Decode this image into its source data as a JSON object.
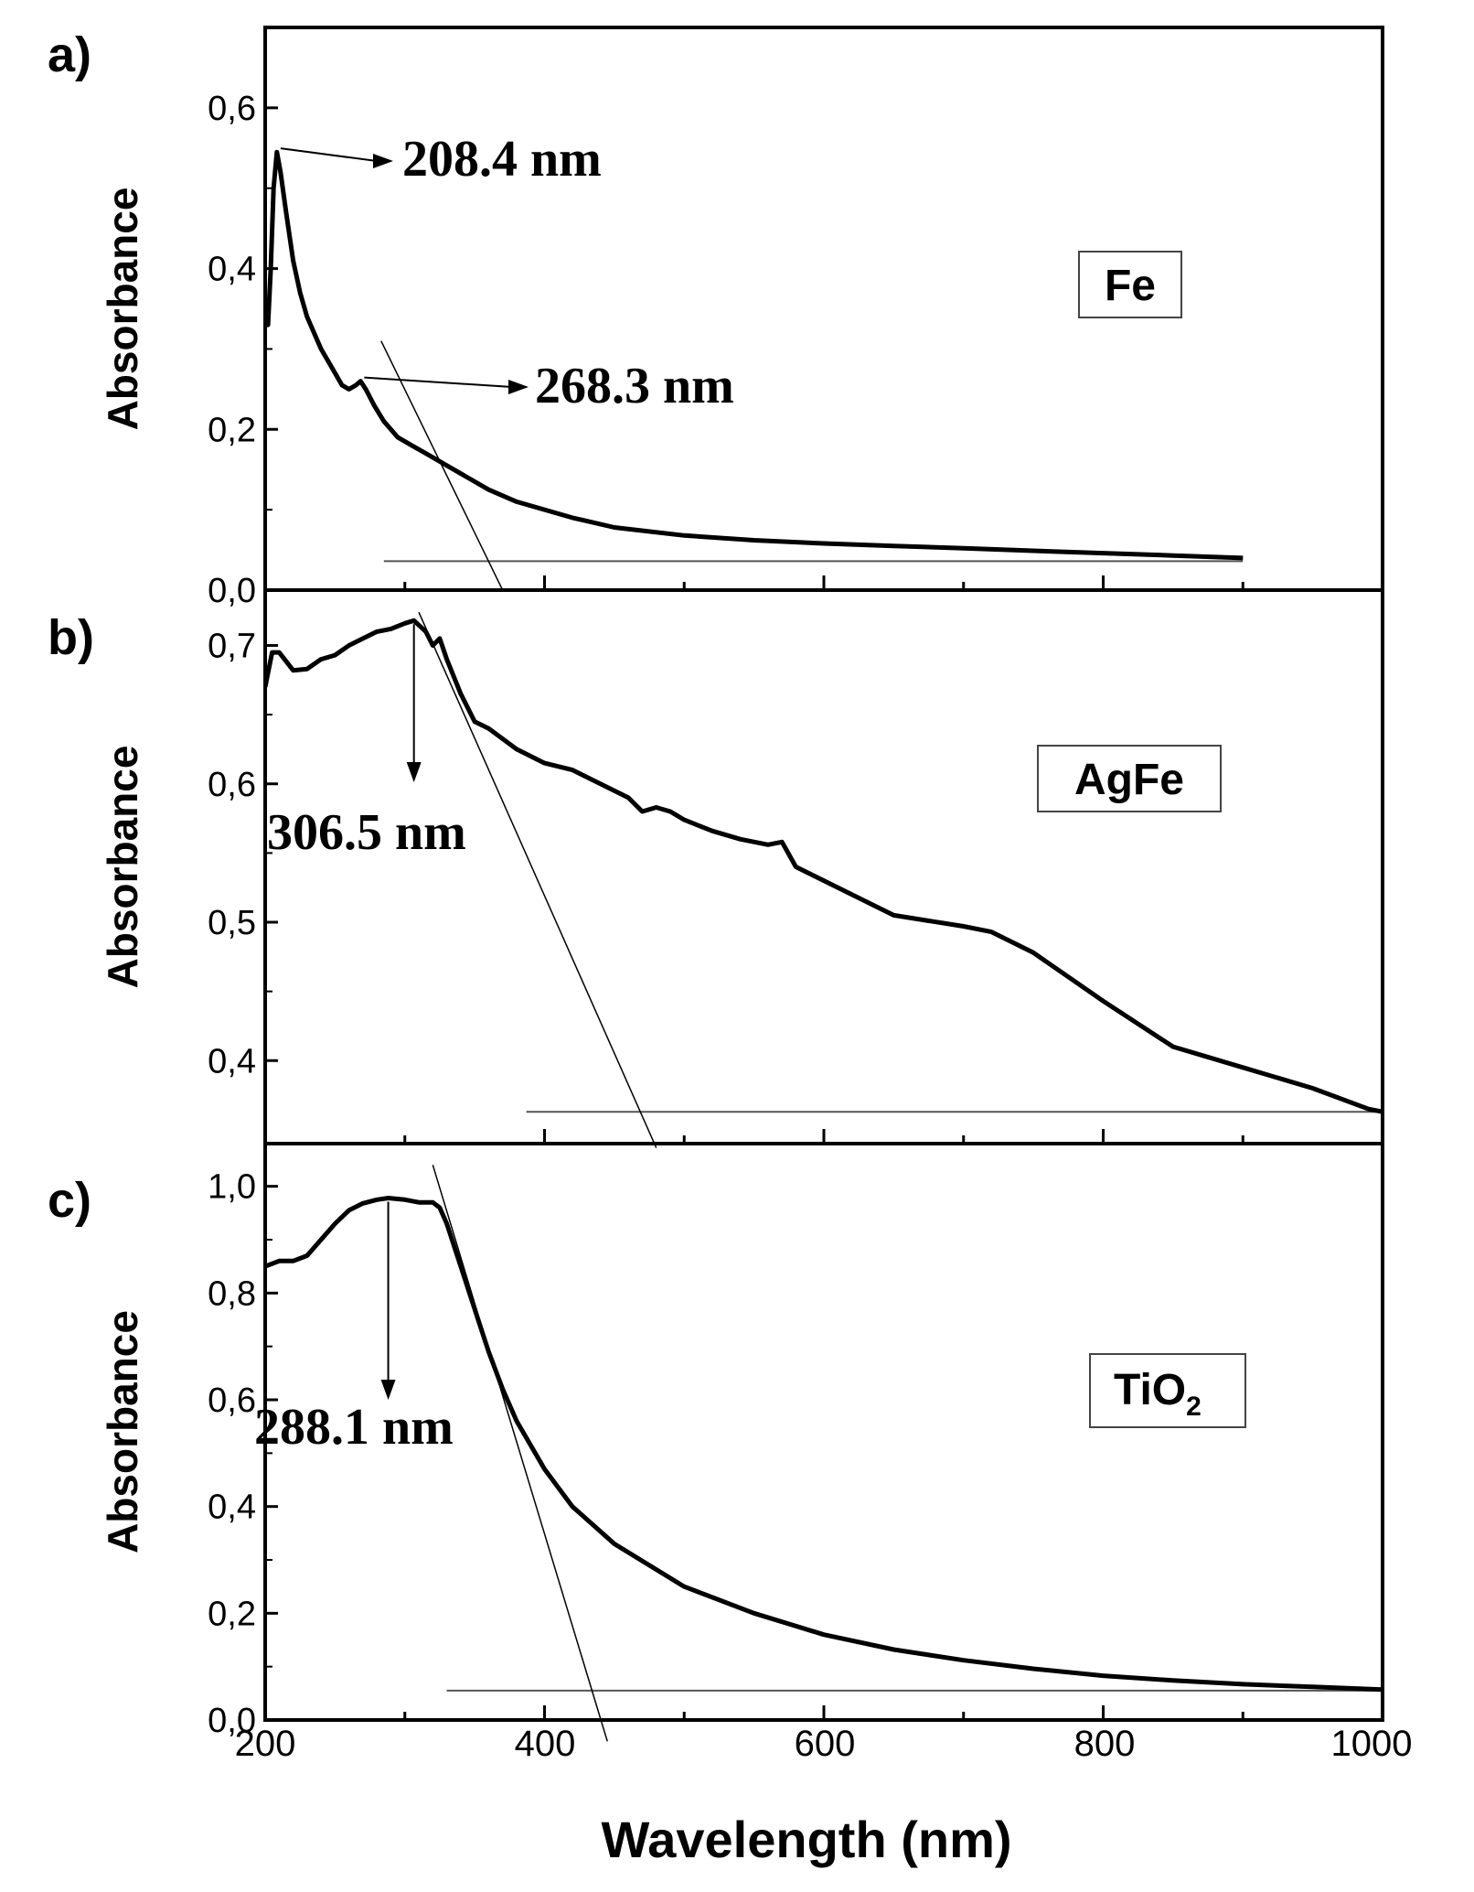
{
  "figure": {
    "xlabel": "Wavelength (nm)",
    "ylabel": "Absorbance",
    "x_ticks": [
      "200",
      "400",
      "600",
      "800",
      "1000"
    ],
    "line_color": "#000000",
    "tangent_color": "#000000",
    "baseline_color": "#555555"
  },
  "chart_data": [
    {
      "type": "line",
      "panel_label": "a)",
      "legend": "Fe",
      "xlabel": "Wavelength (nm)",
      "ylabel": "Absorbance",
      "xlim": [
        200,
        1000
      ],
      "ylim": [
        0,
        0.7
      ],
      "y_ticks": [
        0,
        0.2,
        0.4,
        0.6
      ],
      "y_tick_labels": [
        "0,0",
        "0,2",
        "0,4",
        "0,6"
      ],
      "series": [
        {
          "name": "Fe",
          "x": [
            200,
            202,
            204,
            206,
            208.4,
            211,
            215,
            220,
            225,
            230,
            240,
            250,
            255,
            260,
            265,
            268.3,
            272,
            278,
            285,
            295,
            305,
            315,
            330,
            345,
            360,
            380,
            400,
            420,
            450,
            500,
            550,
            600,
            650,
            700,
            750,
            800,
            850,
            900
          ],
          "y": [
            0.33,
            0.33,
            0.4,
            0.5,
            0.545,
            0.52,
            0.47,
            0.41,
            0.37,
            0.34,
            0.3,
            0.27,
            0.255,
            0.25,
            0.255,
            0.26,
            0.25,
            0.23,
            0.21,
            0.19,
            0.18,
            0.17,
            0.155,
            0.14,
            0.125,
            0.11,
            0.1,
            0.09,
            0.078,
            0.068,
            0.062,
            0.058,
            0.055,
            0.052,
            0.049,
            0.046,
            0.043,
            0.04
          ]
        }
      ],
      "peaks": [
        {
          "x": 208.4,
          "y": 0.545,
          "label": "208.4 nm",
          "arrow": "right"
        },
        {
          "x": 268.3,
          "y": 0.26,
          "label": "268.3 nm",
          "arrow": "right"
        }
      ],
      "tangent": {
        "x": [
          283,
          370
        ],
        "y": [
          0.31,
          0.0
        ]
      },
      "baseline": {
        "x": [
          285,
          900
        ],
        "y": 0.036
      }
    },
    {
      "type": "line",
      "panel_label": "b)",
      "legend": "AgFe",
      "xlabel": "Wavelength (nm)",
      "ylabel": "Absorbance",
      "xlim": [
        200,
        1000
      ],
      "ylim": [
        0.34,
        0.74
      ],
      "y_ticks": [
        0.4,
        0.5,
        0.6,
        0.7
      ],
      "y_tick_labels": [
        "0,4",
        "0,5",
        "0,6",
        "0,7"
      ],
      "series": [
        {
          "name": "AgFe",
          "x": [
            200,
            205,
            210,
            220,
            230,
            240,
            250,
            260,
            270,
            280,
            290,
            300,
            306.5,
            315,
            320,
            325,
            330,
            340,
            350,
            360,
            380,
            400,
            420,
            440,
            460,
            470,
            480,
            490,
            500,
            520,
            540,
            560,
            570,
            580,
            600,
            650,
            700,
            720,
            750,
            800,
            850,
            900,
            950,
            990,
            1000
          ],
          "y": [
            0.67,
            0.695,
            0.695,
            0.682,
            0.683,
            0.69,
            0.693,
            0.7,
            0.705,
            0.71,
            0.712,
            0.716,
            0.718,
            0.71,
            0.7,
            0.705,
            0.69,
            0.665,
            0.645,
            0.64,
            0.625,
            0.615,
            0.61,
            0.6,
            0.59,
            0.58,
            0.583,
            0.58,
            0.574,
            0.566,
            0.56,
            0.556,
            0.558,
            0.54,
            0.53,
            0.505,
            0.497,
            0.493,
            0.478,
            0.443,
            0.41,
            0.395,
            0.38,
            0.365,
            0.363
          ]
        }
      ],
      "peaks": [
        {
          "x": 306.5,
          "y": 0.718,
          "label": "306.5 nm",
          "arrow": "down"
        }
      ],
      "tangent": {
        "x": [
          310,
          480
        ],
        "y": [
          0.724,
          0.337
        ]
      },
      "baseline": {
        "x": [
          387,
          1000
        ],
        "y": 0.363
      }
    },
    {
      "type": "line",
      "panel_label": "c)",
      "legend_main": "TiO",
      "legend_sub": "2",
      "xlabel": "Wavelength (nm)",
      "ylabel": "Absorbance",
      "xlim": [
        200,
        1000
      ],
      "ylim": [
        0,
        1.08
      ],
      "y_ticks": [
        0,
        0.2,
        0.4,
        0.6,
        0.8,
        1.0
      ],
      "y_tick_labels": [
        "0,0",
        "0,2",
        "0,4",
        "0,6",
        "0,8",
        "1,0"
      ],
      "series": [
        {
          "name": "TiO2",
          "x": [
            200,
            210,
            220,
            230,
            240,
            250,
            260,
            270,
            280,
            288.1,
            300,
            310,
            320,
            325,
            330,
            340,
            350,
            360,
            370,
            380,
            400,
            420,
            450,
            500,
            550,
            600,
            650,
            700,
            750,
            800,
            850,
            900,
            950,
            1000
          ],
          "y": [
            0.85,
            0.86,
            0.86,
            0.87,
            0.9,
            0.93,
            0.955,
            0.968,
            0.975,
            0.978,
            0.975,
            0.97,
            0.97,
            0.96,
            0.93,
            0.85,
            0.77,
            0.69,
            0.62,
            0.56,
            0.47,
            0.4,
            0.33,
            0.25,
            0.2,
            0.16,
            0.132,
            0.112,
            0.096,
            0.083,
            0.074,
            0.067,
            0.062,
            0.057
          ]
        }
      ],
      "peaks": [
        {
          "x": 288.1,
          "y": 0.978,
          "label": "288.1 nm",
          "arrow": "down"
        }
      ],
      "tangent": {
        "x": [
          320,
          445
        ],
        "y": [
          1.04,
          -0.04
        ]
      },
      "baseline": {
        "x": [
          330,
          1000
        ],
        "y": 0.055
      }
    }
  ]
}
